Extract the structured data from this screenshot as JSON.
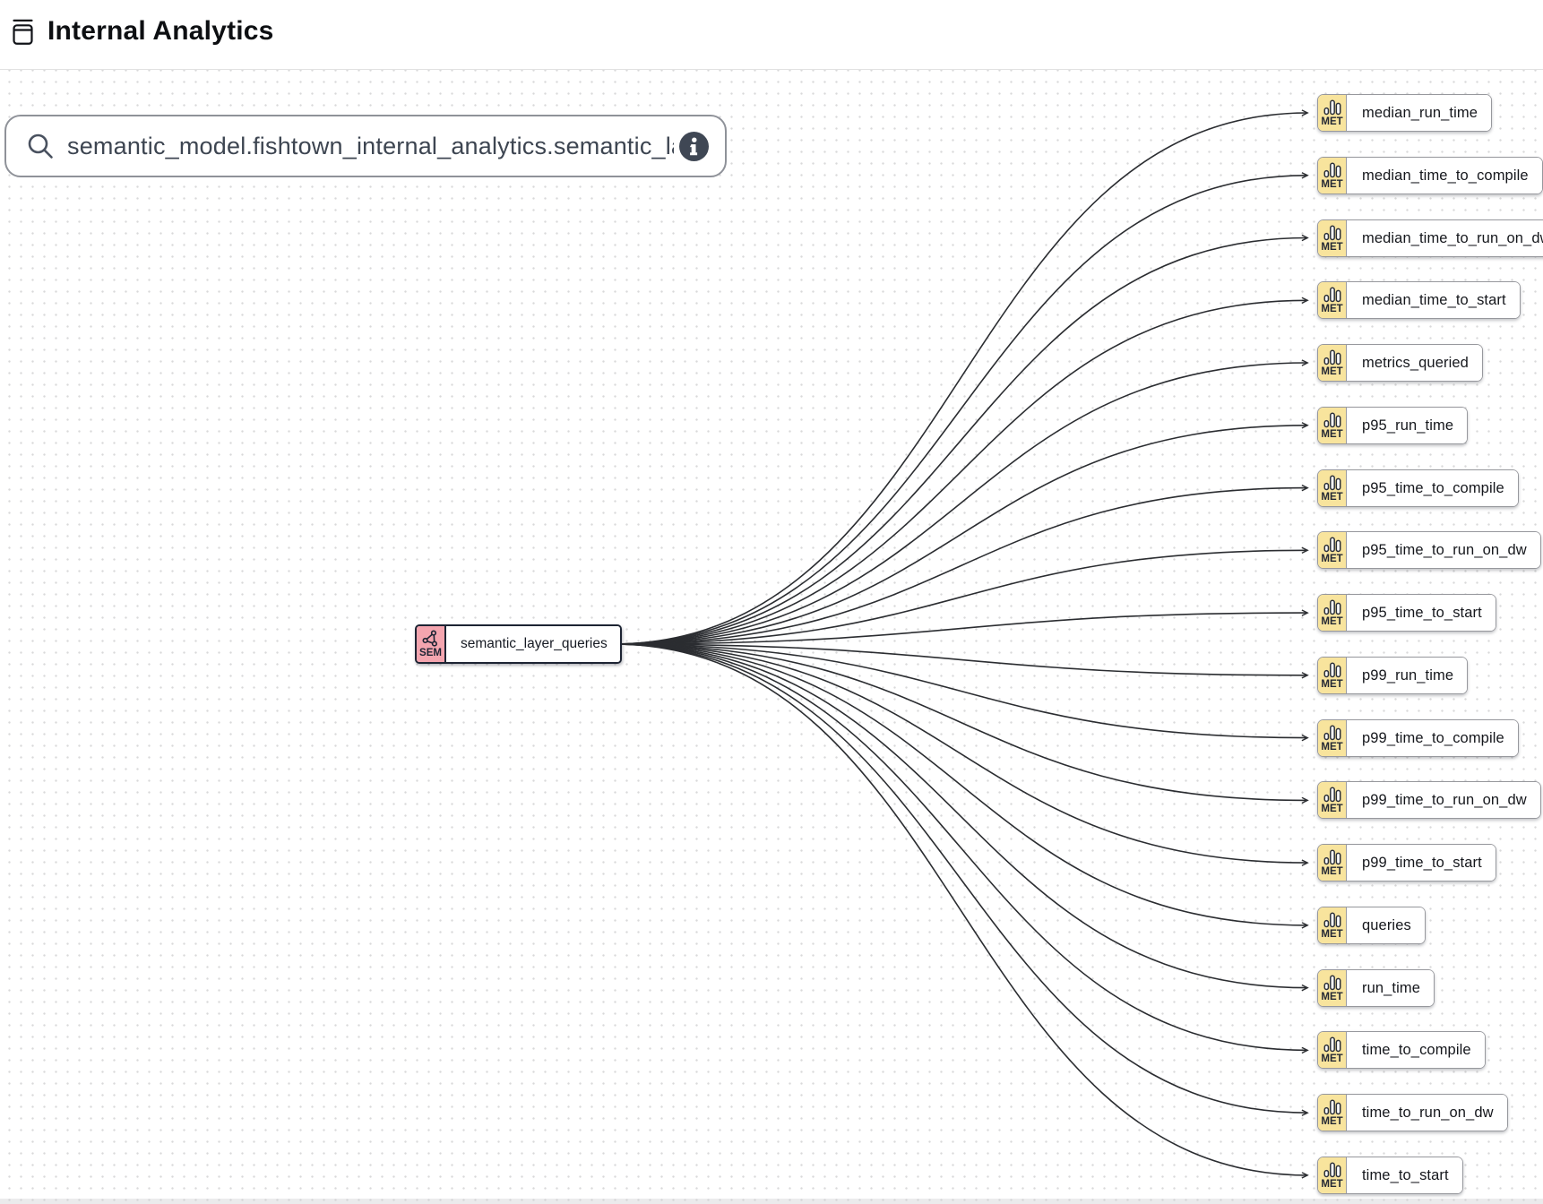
{
  "header": {
    "title": "Internal Analytics",
    "icon": "archive-box-icon"
  },
  "search": {
    "value": "semantic_model.fishtown_internal_analytics.semantic_layer_queries",
    "search_icon": "search-icon",
    "info_icon": "info-icon"
  },
  "graph": {
    "source_node": {
      "badge": "SEM",
      "label": "semantic_layer_queries",
      "badge_color": "#f4a5af",
      "border_color": "#1d2433",
      "icon": "semantic-model-icon"
    },
    "metric_badge": "MET",
    "metric_badge_color": "#f8e49d",
    "metric_icon": "bar-chart-icon",
    "edge_color": "#2b2d31",
    "metrics": [
      "median_run_time",
      "median_time_to_compile",
      "median_time_to_run_on_dw",
      "median_time_to_start",
      "metrics_queried",
      "p95_run_time",
      "p95_time_to_compile",
      "p95_time_to_run_on_dw",
      "p95_time_to_start",
      "p99_run_time",
      "p99_time_to_compile",
      "p99_time_to_run_on_dw",
      "p99_time_to_start",
      "queries",
      "run_time",
      "time_to_compile",
      "time_to_run_on_dw",
      "time_to_start"
    ]
  }
}
